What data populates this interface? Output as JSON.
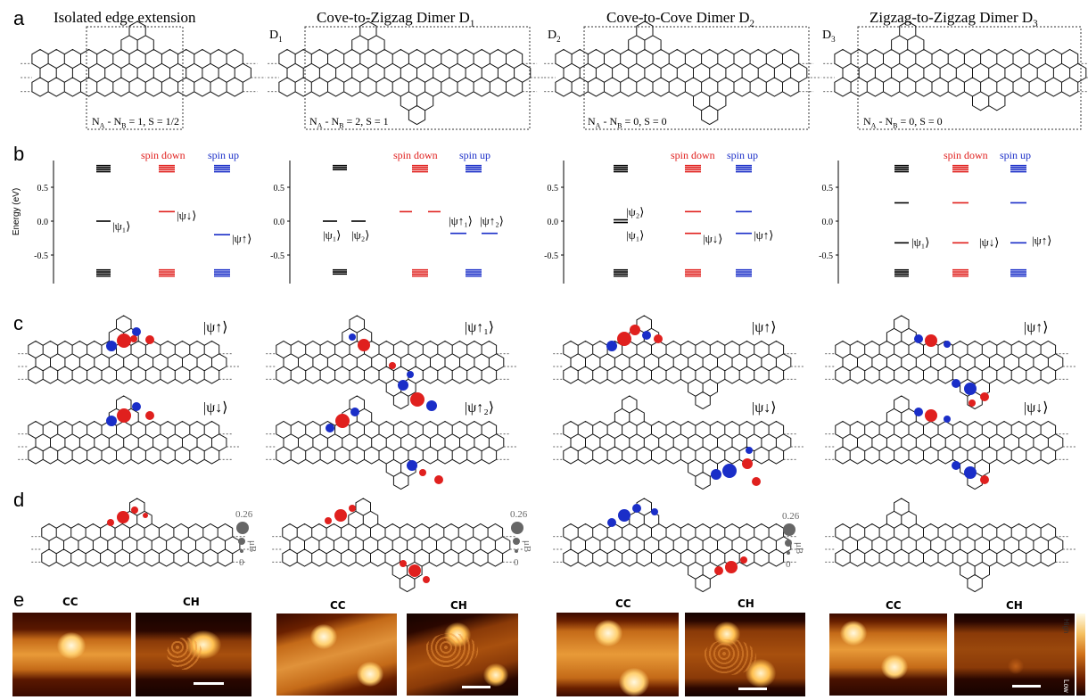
{
  "panels": {
    "a": "a",
    "b": "b",
    "c": "c",
    "d": "d",
    "e": "e"
  },
  "titles": [
    "Isolated edge  extension",
    "Cove-to-Zigzag Dimer D",
    "Cove-to-Cove Dimer D",
    "Zigzag-to-Zigzag Dimer D"
  ],
  "title_subs": [
    "",
    "1",
    "2",
    "3"
  ],
  "dimer_tags": [
    "D",
    "D",
    "D"
  ],
  "dimer_tag_subs": [
    "1",
    "2",
    "3"
  ],
  "counts": [
    {
      "main": "N",
      "a": "A",
      "mid": " - N",
      "b": "B",
      "rest": " = 1, S = 1/2"
    },
    {
      "main": "N",
      "a": "A",
      "mid": " - N",
      "b": "B",
      "rest": " = 2, S = 1"
    },
    {
      "main": "N",
      "a": "A",
      "mid": " - N",
      "b": "B",
      "rest": " = 0, S = 0"
    },
    {
      "main": "N",
      "a": "A",
      "mid": " - N",
      "b": "B",
      "rest": " = 0, S = 0"
    }
  ],
  "energy_axis": {
    "label": "Energy (eV)",
    "ticks": [
      "0.5",
      "0.0",
      "-0.5"
    ]
  },
  "legend": {
    "spin_down": "spin down",
    "spin_up": "spin up"
  },
  "colors": {
    "spin_down": "#e0201e",
    "spin_up": "#1a2ec8",
    "neutral": "#000000",
    "scale": "#666666"
  },
  "state_labels": {
    "b1": [
      "|ψ₁⟩",
      "|ψ↓⟩",
      "|ψ↑⟩"
    ],
    "b2": [
      "|ψ₁⟩",
      "|ψ₂⟩",
      "|ψ↑₁⟩",
      "|ψ↑₂⟩"
    ],
    "b3": [
      "|ψ₂⟩",
      "|ψ₁⟩",
      "|ψ↓⟩",
      "|ψ↑⟩"
    ],
    "b4": [
      "|ψ₁⟩",
      "|ψ↓⟩",
      "|ψ↑⟩"
    ]
  },
  "c_labels": [
    [
      "|ψ↑⟩",
      "|ψ↓⟩"
    ],
    [
      "|ψ↑₁⟩",
      "|ψ↑₂⟩"
    ],
    [
      "|ψ↑⟩",
      "|ψ↓⟩"
    ],
    [
      "|ψ↑⟩",
      "|ψ↓⟩"
    ]
  ],
  "scale_bar": {
    "max": "0.26",
    "min": "0",
    "unit": "μB"
  },
  "stm": {
    "cc": "CC",
    "ch": "CH",
    "colorbar_high": "High",
    "colorbar_low": "Low"
  }
}
